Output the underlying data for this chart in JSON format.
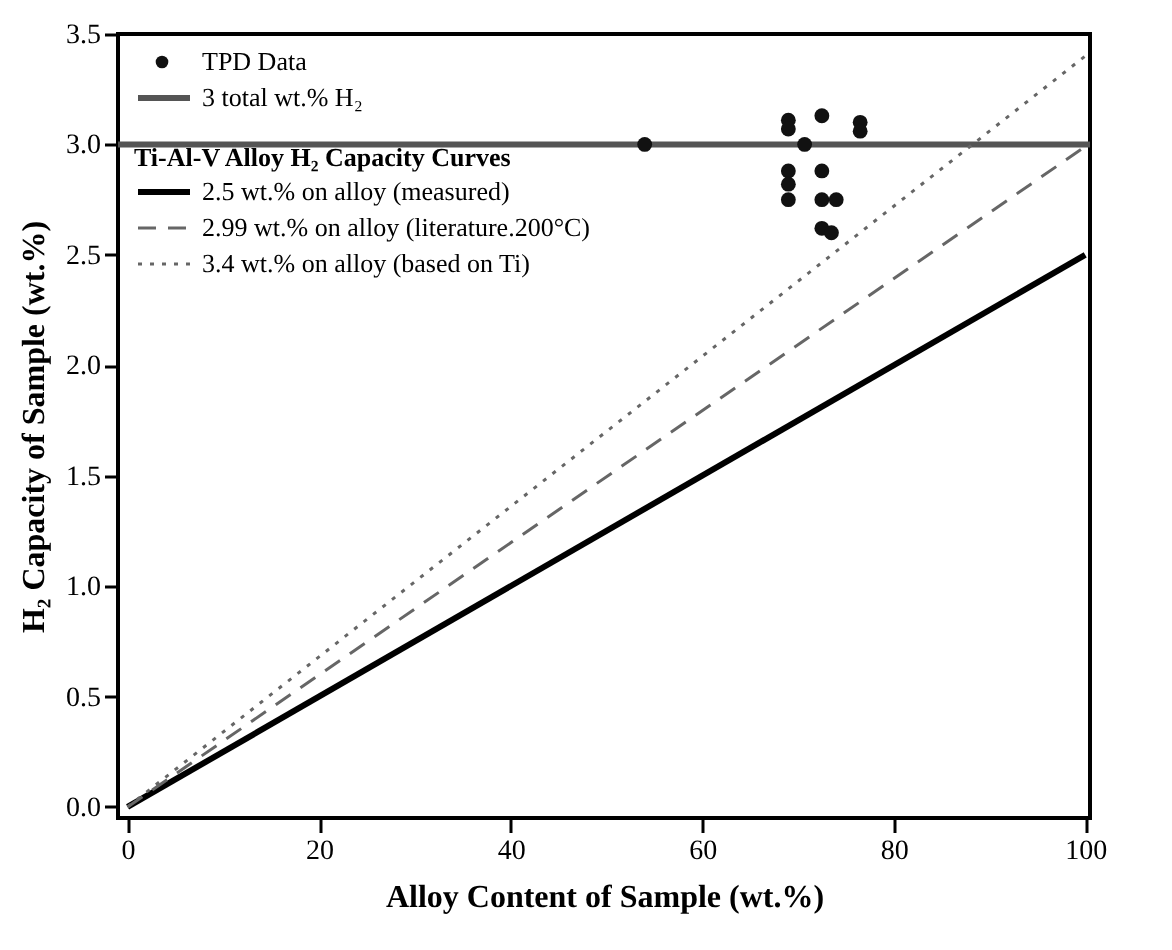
{
  "chart_data": {
    "type": "line",
    "xlabel": "Alloy Content of Sample (wt.%)",
    "ylabel": "H₂ Capacity of Sample (wt.%)",
    "legend_title": "Ti-Al-V Alloy H₂ Capacity Curves",
    "legend": "top left",
    "grid": false,
    "xlim": [
      -1,
      100.5
    ],
    "xticks": [
      0,
      20,
      40,
      60,
      80,
      100
    ],
    "ylim": [
      -0.05,
      3.5
    ],
    "yticks": [
      {
        "value": 0,
        "label": "0.0"
      },
      {
        "value": 0.5,
        "label": "0.5"
      },
      {
        "value": 1,
        "label": "1.0"
      },
      {
        "value": 1.5,
        "label": "1.5"
      },
      {
        "value": 2,
        "label": "2.0"
      },
      {
        "value": 2.5,
        "label": "2.5"
      },
      {
        "value": 3,
        "label": "3.0"
      },
      {
        "value": 3.5,
        "label": "3.5"
      }
    ],
    "ref_lines": [
      {
        "axis": "y",
        "value": 3,
        "label": "3 total wt.% H₂",
        "color": "#555555",
        "line_style": "solid"
      }
    ],
    "series": [
      {
        "name": "TPD Data",
        "type": "scatter",
        "marker": "circle",
        "color": "#111111",
        "x": [
          54,
          69,
          69,
          69,
          69,
          69,
          70.7,
          72.5,
          72.5,
          72.5,
          74,
          72.5,
          73.5,
          76.5,
          76.5
        ],
        "values": [
          3.0,
          3.11,
          3.07,
          2.88,
          2.82,
          2.75,
          3.0,
          3.13,
          2.88,
          2.75,
          2.75,
          2.62,
          2.6,
          3.1,
          3.06
        ]
      },
      {
        "name": "2.5 wt.% on alloy (measured)",
        "line_style": "solid",
        "color": "#000000",
        "x": [
          0,
          100
        ],
        "values": [
          0,
          2.5
        ]
      },
      {
        "name": "2.99 wt.% on alloy (literature.200°C)",
        "line_style": "dashed",
        "color": "#666666",
        "x": [
          0,
          100
        ],
        "values": [
          0,
          2.99
        ]
      },
      {
        "name": "3.4 wt.% on alloy (based on Ti)",
        "line_style": "dotted",
        "color": "#666666",
        "x": [
          0,
          100
        ],
        "values": [
          0,
          3.4
        ]
      }
    ]
  }
}
